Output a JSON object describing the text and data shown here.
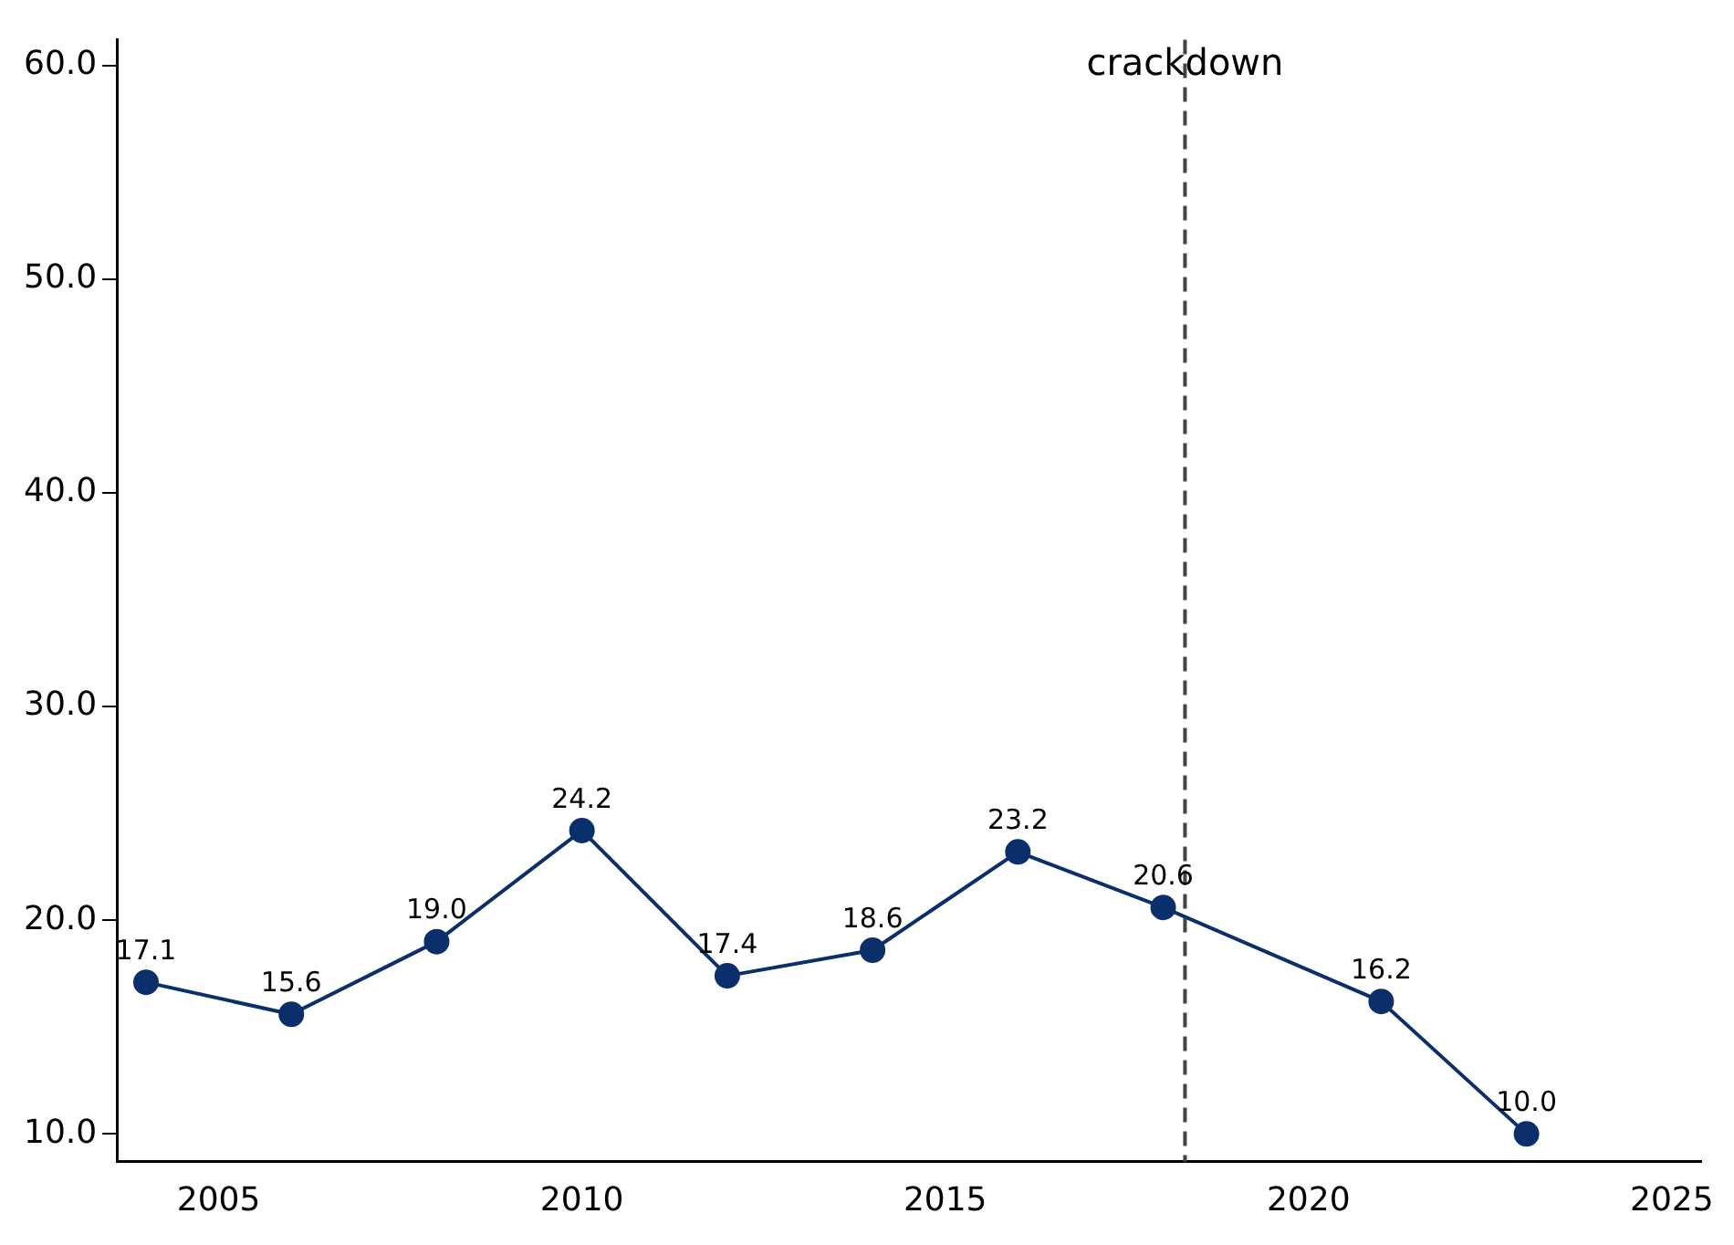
{
  "chart_data": {
    "type": "line",
    "x": [
      2004,
      2006,
      2008,
      2010,
      2012,
      2014,
      2016,
      2018,
      2021,
      2023
    ],
    "series": [
      {
        "color": "#0b2f6b",
        "values": [
          17.1,
          15.6,
          19.0,
          24.2,
          17.4,
          18.6,
          23.2,
          20.6,
          16.2,
          10.0
        ],
        "value_labels": [
          "17.1",
          "15.6",
          "19.0",
          "24.2",
          "17.4",
          "18.6",
          "23.2",
          "20.6",
          "16.2",
          "10.0"
        ]
      }
    ],
    "xlim": [
      2003.6,
      2025.4
    ],
    "xticks": [
      2005,
      2010,
      2015,
      2020,
      2025
    ],
    "ylim": [
      8.7,
      61.2
    ],
    "yticks": [
      {
        "value": 10,
        "label": "10.0"
      },
      {
        "value": 20,
        "label": "20.0"
      },
      {
        "value": 30,
        "label": "30.0"
      },
      {
        "value": 40,
        "label": "40.0"
      },
      {
        "value": 50,
        "label": "50.0"
      },
      {
        "value": 60,
        "label": "60.0"
      }
    ],
    "ref_lines": [
      {
        "axis": "x",
        "value": 2018.3,
        "label": "crackdown",
        "color": "#444444",
        "line_style": "dashed"
      }
    ],
    "marker": "circle",
    "line_style": "solid",
    "grid": false,
    "legend": false
  }
}
